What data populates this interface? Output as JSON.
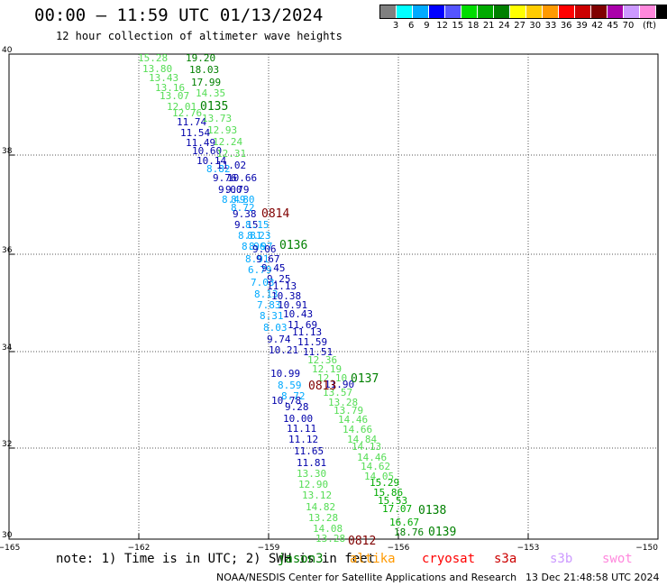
{
  "header": {
    "title": "00:00 – 11:59 UTC 01/13/2024",
    "subtitle": "12 hour collection of altimeter wave heights"
  },
  "legend": {
    "unit": "(ft)",
    "ticks": [
      "3",
      "6",
      "9",
      "12",
      "15",
      "18",
      "21",
      "24",
      "27",
      "30",
      "33",
      "36",
      "39",
      "42",
      "45",
      "70"
    ],
    "colors": [
      "#808080",
      "#00ffff",
      "#00aaff",
      "#0000ff",
      "#5555ff",
      "#00dd00",
      "#00aa00",
      "#008000",
      "#ffff00",
      "#ffcc00",
      "#ff9900",
      "#ff0000",
      "#cc0000",
      "#800000",
      "#aa00aa",
      "#cc99ff",
      "#ff88dd",
      "#000000"
    ]
  },
  "axes": {
    "lat_labels": [
      "40",
      "38",
      "36",
      "34",
      "32",
      "30"
    ],
    "lon_labels": [
      "−165",
      "−162",
      "−159",
      "−156",
      "−153",
      "−150"
    ]
  },
  "passes": [
    {
      "label": "0135",
      "color": "#008000"
    },
    {
      "label": "0814",
      "color": "#800000"
    },
    {
      "label": "0136",
      "color": "#008000"
    },
    {
      "label": "0137",
      "color": "#008000"
    },
    {
      "label": "0813",
      "color": "#800000"
    },
    {
      "label": "0138",
      "color": "#008000"
    },
    {
      "label": "0139",
      "color": "#008000"
    },
    {
      "label": "0812",
      "color": "#800000"
    }
  ],
  "readings": [
    {
      "v": "15.28",
      "c": "#55dd55"
    },
    {
      "v": "19.20",
      "c": "#008000"
    },
    {
      "v": "13.80",
      "c": "#55dd55"
    },
    {
      "v": "18.03",
      "c": "#008000"
    },
    {
      "v": "13.43",
      "c": "#55dd55"
    },
    {
      "v": "17.99",
      "c": "#008000"
    },
    {
      "v": "13.16",
      "c": "#55dd55"
    },
    {
      "v": "14.35",
      "c": "#55dd55"
    },
    {
      "v": "13.07",
      "c": "#55dd55"
    },
    {
      "v": "12.01",
      "c": "#55dd55"
    },
    {
      "v": "12.76",
      "c": "#55dd55"
    },
    {
      "v": "11.74",
      "c": "#0000aa"
    },
    {
      "v": "13.73",
      "c": "#55dd55"
    },
    {
      "v": "11.54",
      "c": "#0000aa"
    },
    {
      "v": "12.93",
      "c": "#55dd55"
    },
    {
      "v": "11.49",
      "c": "#0000aa"
    },
    {
      "v": "12.24",
      "c": "#55dd55"
    },
    {
      "v": "10.60",
      "c": "#0000aa"
    },
    {
      "v": "12.31",
      "c": "#55dd55"
    },
    {
      "v": "10.14",
      "c": "#0000aa"
    },
    {
      "v": "8.82",
      "c": "#00aaff"
    },
    {
      "v": "11.02",
      "c": "#0000aa"
    },
    {
      "v": "9.76",
      "c": "#0000aa"
    },
    {
      "v": "10.66",
      "c": "#0000aa"
    },
    {
      "v": "9.00",
      "c": "#0000aa"
    },
    {
      "v": "9.79",
      "c": "#0000aa"
    },
    {
      "v": "8.49",
      "c": "#00aaff"
    },
    {
      "v": "8.80",
      "c": "#00aaff"
    },
    {
      "v": "8.72",
      "c": "#00aaff"
    },
    {
      "v": "9.38",
      "c": "#0000aa"
    },
    {
      "v": "9.15",
      "c": "#0000aa"
    },
    {
      "v": "8.15",
      "c": "#00aaff"
    },
    {
      "v": "8.81",
      "c": "#00aaff"
    },
    {
      "v": "8.23",
      "c": "#00aaff"
    },
    {
      "v": "8.96",
      "c": "#00aaff"
    },
    {
      "v": "8.97",
      "c": "#00aaff"
    },
    {
      "v": "9.06",
      "c": "#0000aa"
    },
    {
      "v": "8.91",
      "c": "#00aaff"
    },
    {
      "v": "9.67",
      "c": "#0000aa"
    },
    {
      "v": "6.79",
      "c": "#00aaff"
    },
    {
      "v": "9.45",
      "c": "#0000aa"
    },
    {
      "v": "9.25",
      "c": "#0000aa"
    },
    {
      "v": "7.03",
      "c": "#00aaff"
    },
    {
      "v": "11.13",
      "c": "#0000aa"
    },
    {
      "v": "8.13",
      "c": "#00aaff"
    },
    {
      "v": "10.38",
      "c": "#0000aa"
    },
    {
      "v": "7.83",
      "c": "#00aaff"
    },
    {
      "v": "10.91",
      "c": "#0000aa"
    },
    {
      "v": "8.31",
      "c": "#00aaff"
    },
    {
      "v": "10.43",
      "c": "#0000aa"
    },
    {
      "v": "8.03",
      "c": "#00aaff"
    },
    {
      "v": "11.69",
      "c": "#0000aa"
    },
    {
      "v": "11.13",
      "c": "#0000aa"
    },
    {
      "v": "9.74",
      "c": "#0000aa"
    },
    {
      "v": "11.59",
      "c": "#0000aa"
    },
    {
      "v": "10.21",
      "c": "#0000aa"
    },
    {
      "v": "11.51",
      "c": "#0000aa"
    },
    {
      "v": "12.36",
      "c": "#55dd55"
    },
    {
      "v": "10.99",
      "c": "#0000aa"
    },
    {
      "v": "12.19",
      "c": "#55dd55"
    },
    {
      "v": "10.78",
      "c": "#0000aa"
    },
    {
      "v": "12.10",
      "c": "#55dd55"
    },
    {
      "v": "8.59",
      "c": "#00aaff"
    },
    {
      "v": "11.90",
      "c": "#0000aa"
    },
    {
      "v": "8.72",
      "c": "#00aaff"
    },
    {
      "v": "13.57",
      "c": "#55dd55"
    },
    {
      "v": "13.28",
      "c": "#55dd55"
    },
    {
      "v": "9.28",
      "c": "#0000aa"
    },
    {
      "v": "13.79",
      "c": "#55dd55"
    },
    {
      "v": "10.00",
      "c": "#0000aa"
    },
    {
      "v": "14.46",
      "c": "#55dd55"
    },
    {
      "v": "11.11",
      "c": "#0000aa"
    },
    {
      "v": "14.66",
      "c": "#55dd55"
    },
    {
      "v": "11.12",
      "c": "#0000aa"
    },
    {
      "v": "14.84",
      "c": "#55dd55"
    },
    {
      "v": "11.65",
      "c": "#0000aa"
    },
    {
      "v": "14.13",
      "c": "#55dd55"
    },
    {
      "v": "11.81",
      "c": "#0000aa"
    },
    {
      "v": "14.46",
      "c": "#55dd55"
    },
    {
      "v": "13.30",
      "c": "#55dd55"
    },
    {
      "v": "14.62",
      "c": "#55dd55"
    },
    {
      "v": "12.90",
      "c": "#55dd55"
    },
    {
      "v": "14.05",
      "c": "#55dd55"
    },
    {
      "v": "13.12",
      "c": "#55dd55"
    },
    {
      "v": "15.29",
      "c": "#00aa00"
    },
    {
      "v": "14.82",
      "c": "#55dd55"
    },
    {
      "v": "15.86",
      "c": "#00aa00"
    },
    {
      "v": "13.28",
      "c": "#55dd55"
    },
    {
      "v": "15.53",
      "c": "#00aa00"
    },
    {
      "v": "14.08",
      "c": "#55dd55"
    },
    {
      "v": "17.07",
      "c": "#00aa00"
    },
    {
      "v": "13.28",
      "c": "#55dd55"
    },
    {
      "v": "16.67",
      "c": "#00aa00"
    },
    {
      "v": "18.76",
      "c": "#008000"
    }
  ],
  "note": "note: 1) Time is in UTC; 2) SWH is in feet",
  "satellites": [
    {
      "name": "jason3",
      "color": "#008000"
    },
    {
      "name": "altika",
      "color": "#ff9900"
    },
    {
      "name": "cryosat",
      "color": "#ff0000"
    },
    {
      "name": "s3a",
      "color": "#cc0000"
    },
    {
      "name": "s3b",
      "color": "#cc99ff"
    },
    {
      "name": "swot",
      "color": "#ff88dd"
    }
  ],
  "footer": {
    "credit": "NOAA/NESDIS Center for Satellite Applications and Research",
    "timestamp": "13 Dec 21:48:58 UTC 2024"
  }
}
